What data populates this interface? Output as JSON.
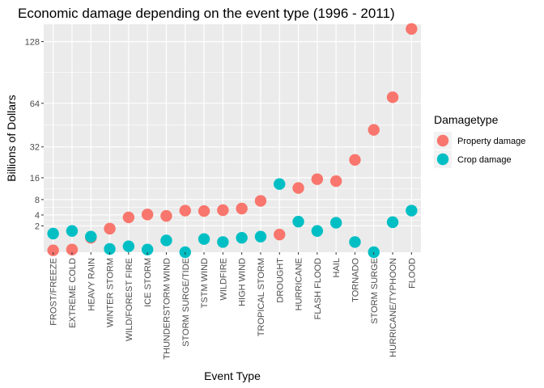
{
  "chart_data": {
    "type": "scatter",
    "title": "Economic damage depending on the event type (1996 - 2011)",
    "xlabel": "Event Type",
    "ylabel": "Billions of Dollars",
    "y_scale": "sqrt",
    "ylim": [
      0,
      150
    ],
    "yticks": [
      2,
      4,
      8,
      16,
      32,
      64,
      128
    ],
    "grid": true,
    "legend_position": "right",
    "legend_title": "Damagetype",
    "categories": [
      "FROST/FREEZE",
      "EXTREME COLD",
      "HEAVY RAIN",
      "WINTER STORM",
      "WILD/FOREST FIRE",
      "ICE STORM",
      "THUNDERSTORM WIND",
      "STORM SURGE/TIDE",
      "TSTM WIND",
      "WILDFIRE",
      "HIGH WIND",
      "TROPICAL STORM",
      "DROUGHT",
      "HURRICANE",
      "FLASH FLOOD",
      "HAIL",
      "TORNADO",
      "STORM SURGE",
      "HURRICANE/TYPHOON",
      "FLOOD"
    ],
    "series": [
      {
        "name": "Property damage",
        "color": "#F8766D",
        "values": [
          0.01,
          0.02,
          0.6,
          1.6,
          3.5,
          4.1,
          3.8,
          5.0,
          4.9,
          5.1,
          5.5,
          7.6,
          0.9,
          11.9,
          15.4,
          14.6,
          24.6,
          43.2,
          69.3,
          143.9
        ]
      },
      {
        "name": "Crop damage",
        "color": "#00BFC4",
        "values": [
          1.0,
          1.3,
          0.7,
          0.03,
          0.1,
          0.02,
          0.4,
          0.0,
          0.5,
          0.3,
          0.6,
          0.7,
          13.4,
          2.7,
          1.3,
          2.5,
          0.3,
          0.0,
          2.6,
          5.0
        ]
      }
    ]
  }
}
